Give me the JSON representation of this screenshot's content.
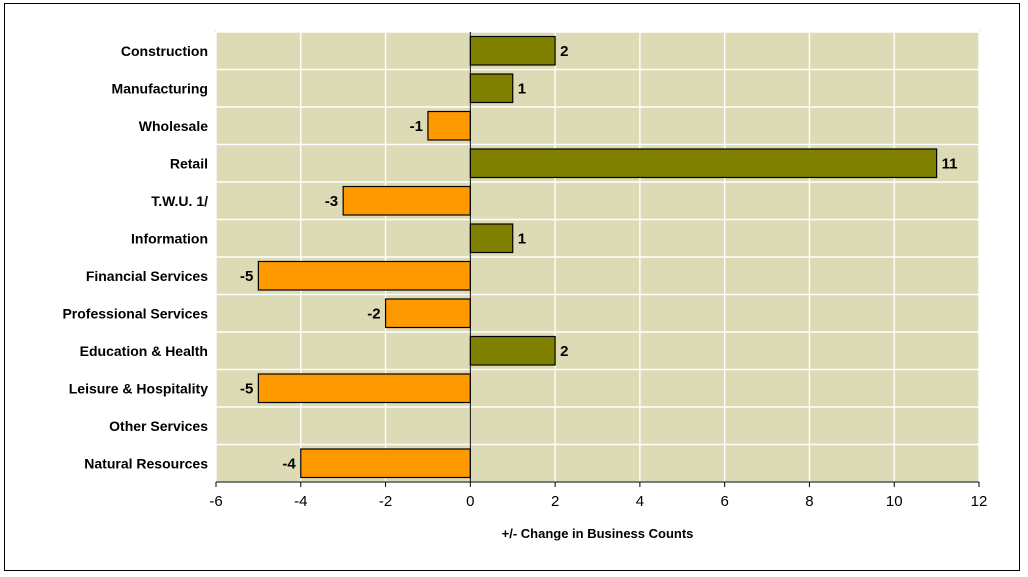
{
  "chart_data": {
    "type": "bar",
    "orientation": "horizontal",
    "categories": [
      "Construction",
      "Manufacturing",
      "Wholesale",
      "Retail",
      "T.W.U. 1/",
      "Information",
      "Financial Services",
      "Professional Services",
      "Education & Health",
      "Leisure & Hospitality",
      "Other Services",
      "Natural Resources"
    ],
    "values": [
      2,
      1,
      -1,
      11,
      -3,
      1,
      -5,
      -2,
      2,
      -5,
      0,
      -4
    ],
    "data_labels": [
      "2",
      "1",
      "-1",
      "11",
      "-3",
      "1",
      "-5",
      "-2",
      "2",
      "-5",
      "",
      "-4"
    ],
    "title": "",
    "xlabel": "+/- Change in Business Counts",
    "ylabel": "",
    "xlim": [
      -6,
      12
    ],
    "xticks": [
      "-6",
      "-4",
      "-2",
      "0",
      "2",
      "4",
      "6",
      "8",
      "10",
      "12"
    ],
    "xtick_values": [
      -6,
      -4,
      -2,
      0,
      2,
      4,
      6,
      8,
      10,
      12
    ],
    "grid": true,
    "legend": "none",
    "colors": {
      "positive": "#808000",
      "negative": "#FF9900",
      "plot_background": "#DDDBB5",
      "grid": "#FFFFFF",
      "bar_outline": "#000000"
    }
  }
}
